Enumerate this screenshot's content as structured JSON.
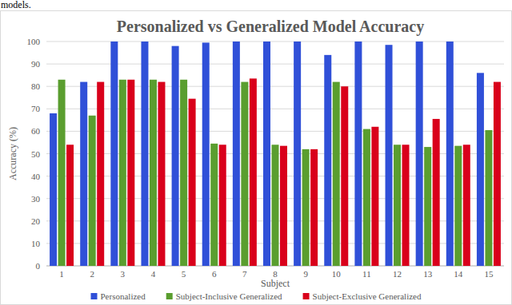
{
  "top_text": "models.",
  "chart_data": {
    "type": "bar",
    "title": "Personalized vs Generalized Model Accuracy",
    "x_label": "Subject",
    "y_label": "Accuracy (%)",
    "categories": [
      "1",
      "2",
      "3",
      "4",
      "5",
      "6",
      "7",
      "8",
      "9",
      "10",
      "11",
      "12",
      "13",
      "14",
      "15"
    ],
    "series": [
      {
        "name": "Personalized",
        "color": "#3050d8",
        "values": [
          68,
          82,
          100,
          100,
          98,
          99.5,
          100,
          100,
          100,
          94,
          100,
          98.5,
          100,
          100,
          86
        ]
      },
      {
        "name": "Subject-Inclusive Generalized",
        "color": "#5a9e2f",
        "values": [
          83,
          67,
          83,
          83,
          83,
          54.5,
          82,
          54,
          52,
          82,
          61,
          54,
          53,
          53.5,
          60.5
        ]
      },
      {
        "name": "Subject-Exclusive Generalized",
        "color": "#d9001b",
        "values": [
          54,
          82,
          83,
          82,
          74.5,
          54,
          83.5,
          53.5,
          52,
          80,
          62,
          54,
          65.5,
          54,
          82
        ]
      }
    ],
    "ylim": [
      0,
      100
    ],
    "yticks": [
      0,
      10,
      20,
      30,
      40,
      50,
      60,
      70,
      80,
      90,
      100
    ],
    "grid": true,
    "legend": "bottom"
  }
}
